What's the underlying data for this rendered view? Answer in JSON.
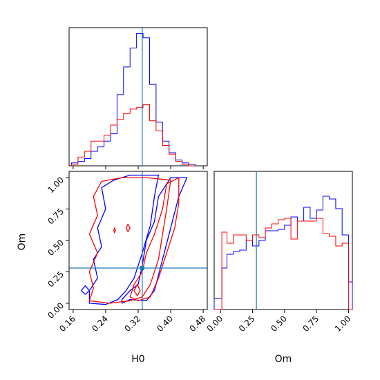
{
  "chart_data": {
    "type": "corner",
    "parameters": [
      "H0",
      "Om"
    ],
    "truths": {
      "H0": 0.33,
      "Om": 0.28
    },
    "colors": {
      "blue": "#0000ff",
      "red": "#ff0000",
      "truth": "#1f77b4"
    },
    "panels": {
      "h0_hist": {
        "type": "step-histogram",
        "xlim": [
          0.15,
          0.49
        ],
        "bin_edges": [
          0.156,
          0.172,
          0.188,
          0.204,
          0.22,
          0.236,
          0.252,
          0.268,
          0.284,
          0.3,
          0.316,
          0.332,
          0.348,
          0.364,
          0.38,
          0.396,
          0.412,
          0.428,
          0.444,
          0.46
        ],
        "series": [
          {
            "color": "blue",
            "counts": [
              0.02,
              0.03,
              0.05,
              0.1,
              0.13,
              0.17,
              0.22,
              0.49,
              0.68,
              0.81,
              0.91,
              0.88,
              0.56,
              0.3,
              0.17,
              0.09,
              0.04,
              0.02,
              0.01
            ]
          },
          {
            "color": "red",
            "counts": [
              0.01,
              0.06,
              0.1,
              0.17,
              0.17,
              0.21,
              0.28,
              0.32,
              0.36,
              0.39,
              0.4,
              0.42,
              0.31,
              0.24,
              0.14,
              0.08,
              0.03,
              0.01,
              0.0
            ]
          }
        ]
      },
      "om_hist": {
        "type": "step-histogram",
        "xlim": [
          -0.05,
          1.03
        ],
        "xticks": [
          "0.00",
          "0.25",
          "0.50",
          "0.75",
          "1.00"
        ],
        "xtick_values": [
          0.0,
          0.25,
          0.5,
          0.75,
          1.0
        ],
        "xlabel": "Om",
        "bin_edges": [
          -0.05,
          0.01,
          0.05,
          0.1,
          0.15,
          0.2,
          0.25,
          0.3,
          0.35,
          0.4,
          0.45,
          0.5,
          0.55,
          0.6,
          0.65,
          0.7,
          0.75,
          0.8,
          0.85,
          0.9,
          0.95,
          1.0,
          1.03
        ],
        "series": [
          {
            "color": "blue",
            "counts": [
              0.08,
              0.3,
              0.4,
              0.42,
              0.43,
              0.5,
              0.46,
              0.5,
              0.57,
              0.57,
              0.58,
              0.61,
              0.67,
              0.64,
              0.74,
              0.66,
              0.72,
              0.82,
              0.8,
              0.73,
              0.54,
              0.2
            ]
          },
          {
            "color": "red",
            "counts": [
              0.0,
              0.56,
              0.48,
              0.54,
              0.54,
              0.5,
              0.54,
              0.52,
              0.59,
              0.62,
              0.65,
              0.66,
              0.51,
              0.64,
              0.64,
              0.64,
              0.66,
              0.55,
              0.53,
              0.46,
              0.48,
              0.0
            ]
          }
        ]
      },
      "joint": {
        "type": "contour",
        "xlim": [
          0.15,
          0.49
        ],
        "ylim": [
          -0.05,
          1.05
        ],
        "xticks": [
          "0.16",
          "0.24",
          "0.32",
          "0.40",
          "0.48"
        ],
        "xtick_values": [
          0.16,
          0.24,
          0.32,
          0.4,
          0.48
        ],
        "yticks": [
          "0.00",
          "0.25",
          "0.50",
          "0.75",
          "1.00"
        ],
        "ytick_values": [
          0.0,
          0.25,
          0.5,
          0.75,
          1.0
        ],
        "xlabel": "H0",
        "ylabel": "Om",
        "contours": [
          {
            "color": "blue",
            "points": [
              [
                0.28,
                0.0
              ],
              [
                0.3,
                0.03
              ],
              [
                0.34,
                0.02
              ],
              [
                0.36,
                0.1
              ],
              [
                0.38,
                0.35
              ],
              [
                0.4,
                0.6
              ],
              [
                0.42,
                0.85
              ],
              [
                0.44,
                1.0
              ],
              [
                0.4,
                1.0
              ],
              [
                0.37,
                0.85
              ],
              [
                0.36,
                0.65
              ],
              [
                0.34,
                0.5
              ],
              [
                0.33,
                0.3
              ],
              [
                0.32,
                0.15
              ],
              [
                0.3,
                0.1
              ],
              [
                0.28,
                0.03
              ]
            ]
          },
          {
            "color": "blue",
            "points": [
              [
                0.2,
                0.0
              ],
              [
                0.24,
                -0.01
              ],
              [
                0.27,
                0.03
              ],
              [
                0.29,
                0.1
              ],
              [
                0.31,
                0.2
              ],
              [
                0.33,
                0.4
              ],
              [
                0.35,
                0.62
              ],
              [
                0.36,
                0.85
              ],
              [
                0.37,
                1.02
              ],
              [
                0.3,
                1.02
              ],
              [
                0.26,
                0.98
              ],
              [
                0.23,
                0.92
              ],
              [
                0.24,
                0.75
              ],
              [
                0.22,
                0.6
              ],
              [
                0.23,
                0.45
              ],
              [
                0.21,
                0.35
              ],
              [
                0.22,
                0.2
              ],
              [
                0.2,
                0.1
              ]
            ]
          },
          {
            "color": "blue",
            "points": [
              [
                0.18,
                0.1
              ],
              [
                0.19,
                0.07
              ],
              [
                0.2,
                0.1
              ],
              [
                0.19,
                0.14
              ]
            ]
          },
          {
            "color": "red",
            "points": [
              [
                0.3,
                0.05
              ],
              [
                0.32,
                0.02
              ],
              [
                0.35,
                0.05
              ],
              [
                0.37,
                0.2
              ],
              [
                0.39,
                0.4
              ],
              [
                0.41,
                0.6
              ],
              [
                0.42,
                0.8
              ],
              [
                0.42,
                1.0
              ],
              [
                0.39,
                0.95
              ],
              [
                0.38,
                0.75
              ],
              [
                0.36,
                0.55
              ],
              [
                0.34,
                0.4
              ],
              [
                0.33,
                0.25
              ],
              [
                0.31,
                0.15
              ]
            ]
          },
          {
            "color": "red",
            "points": [
              [
                0.2,
                0.02
              ],
              [
                0.25,
                0.0
              ],
              [
                0.3,
                0.02
              ],
              [
                0.33,
                0.05
              ],
              [
                0.35,
                0.15
              ],
              [
                0.37,
                0.35
              ],
              [
                0.38,
                0.55
              ],
              [
                0.39,
                0.75
              ],
              [
                0.4,
                0.98
              ],
              [
                0.34,
                1.0
              ],
              [
                0.28,
                1.0
              ],
              [
                0.23,
                0.97
              ],
              [
                0.21,
                0.85
              ],
              [
                0.22,
                0.7
              ],
              [
                0.2,
                0.55
              ],
              [
                0.22,
                0.4
              ],
              [
                0.2,
                0.25
              ],
              [
                0.21,
                0.12
              ]
            ]
          },
          {
            "color": "red",
            "points": [
              [
                0.26,
                0.58
              ],
              [
                0.262,
                0.56
              ],
              [
                0.264,
                0.58
              ],
              [
                0.262,
                0.6
              ]
            ]
          },
          {
            "color": "red",
            "points": [
              [
                0.29,
                0.6
              ],
              [
                0.295,
                0.57
              ],
              [
                0.3,
                0.6
              ],
              [
                0.295,
                0.63
              ]
            ]
          },
          {
            "color": "red",
            "points": [
              [
                0.31,
                0.1
              ],
              [
                0.318,
                0.06
              ],
              [
                0.325,
                0.1
              ],
              [
                0.318,
                0.15
              ]
            ]
          }
        ]
      }
    }
  }
}
